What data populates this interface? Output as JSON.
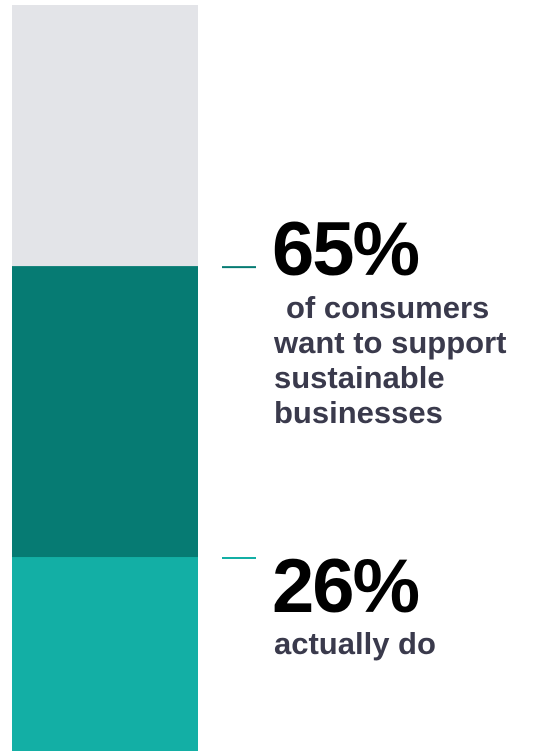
{
  "chart_data": {
    "type": "bar",
    "orientation": "stacked-vertical",
    "track_color": "#E3E4E8",
    "stats": [
      {
        "value": 65,
        "value_label": "65%",
        "description": "of consumers want to support sustainable businesses",
        "color": "#067B73",
        "label_color": "#3A3A4C"
      },
      {
        "value": 26,
        "value_label": "26%",
        "description": "actually do",
        "color": "#13AFA5",
        "label_color": "#3A3A4C"
      }
    ],
    "ylim": [
      0,
      100
    ],
    "grid": false,
    "legend": "none"
  }
}
